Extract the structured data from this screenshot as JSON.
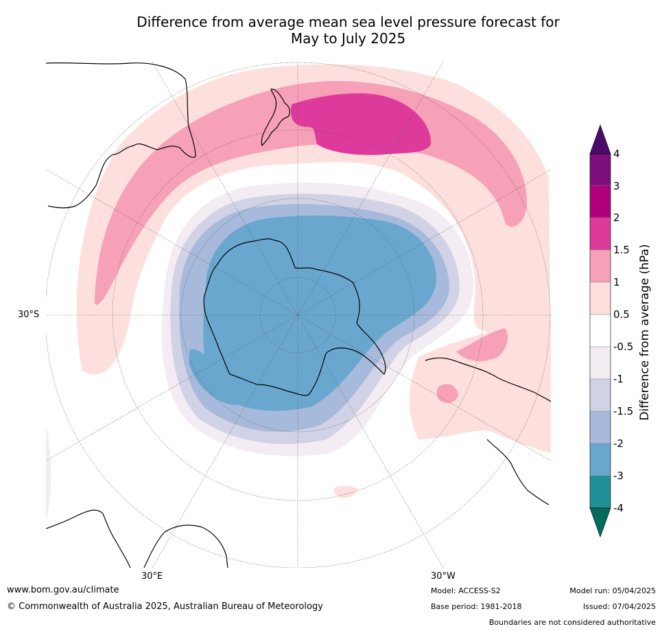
{
  "title_line1": "Difference from average mean sea level pressure forecast for",
  "title_line2": "May to July 2025",
  "lat_label": "30°S",
  "lon_labels": {
    "east": "30°E",
    "west": "30°W"
  },
  "colorbar": {
    "title": "Difference from average (hPa)",
    "ticks": [
      "4",
      "3",
      "2",
      "1.5",
      "1",
      "0.5",
      "-0.5",
      "-1",
      "-1.5",
      "-2",
      "-3",
      "-4"
    ],
    "colors": [
      "#4b0b6c",
      "#7c0f7a",
      "#b0007a",
      "#de3a9c",
      "#f7a1b8",
      "#fde0de",
      "#ffffff",
      "#f3ecf3",
      "#d2d2e6",
      "#a8badb",
      "#6aa7cf",
      "#1f9197",
      "#036c5c"
    ]
  },
  "footer": {
    "website": "www.bom.gov.au/climate",
    "copyright": "© Commonwealth of Australia 2025, Australian Bureau of Meteorology",
    "model": "Model: ACCESS-S2",
    "base_period": "Base period: 1981-2018",
    "model_run": "Model run: 05/04/2025",
    "issued": "Issued: 07/04/2025",
    "disclaimer": "Boundaries are not considered authoritative"
  }
}
